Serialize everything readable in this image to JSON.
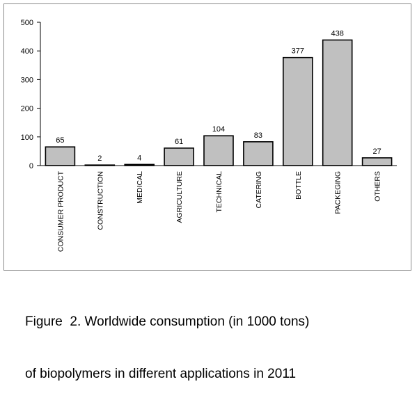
{
  "chart_data": {
    "type": "bar",
    "title": "",
    "xlabel": "",
    "ylabel": "",
    "categories": [
      "CONSUMER PRODUCT",
      "CONSTRUCTION",
      "MEDICAL",
      "AGRICULTURE",
      "TECHNICAL",
      "CATERING",
      "BOTTLE",
      "PACKEGING",
      "OTHERS"
    ],
    "values": [
      65,
      2,
      4,
      61,
      104,
      83,
      377,
      438,
      27
    ],
    "data_labels": [
      "65",
      "2",
      "4",
      "61",
      "104",
      "83",
      "377",
      "438",
      "27"
    ],
    "ylim": [
      0,
      500
    ],
    "yticks": [
      0,
      100,
      200,
      300,
      400,
      500
    ],
    "ytick_labels": [
      "0",
      "100",
      "200",
      "300",
      "400",
      "500"
    ],
    "grid": false,
    "legend": "none",
    "colors": {
      "bar_fill": "#c0c0c0",
      "bar_stroke": "#000000",
      "axis": "#000000",
      "frame": "#8a8a8a"
    }
  },
  "caption": {
    "line1": "Figure  2. Worldwide consumption (in 1000 tons)",
    "line2": "of biopolymers in different applications in 2011"
  }
}
